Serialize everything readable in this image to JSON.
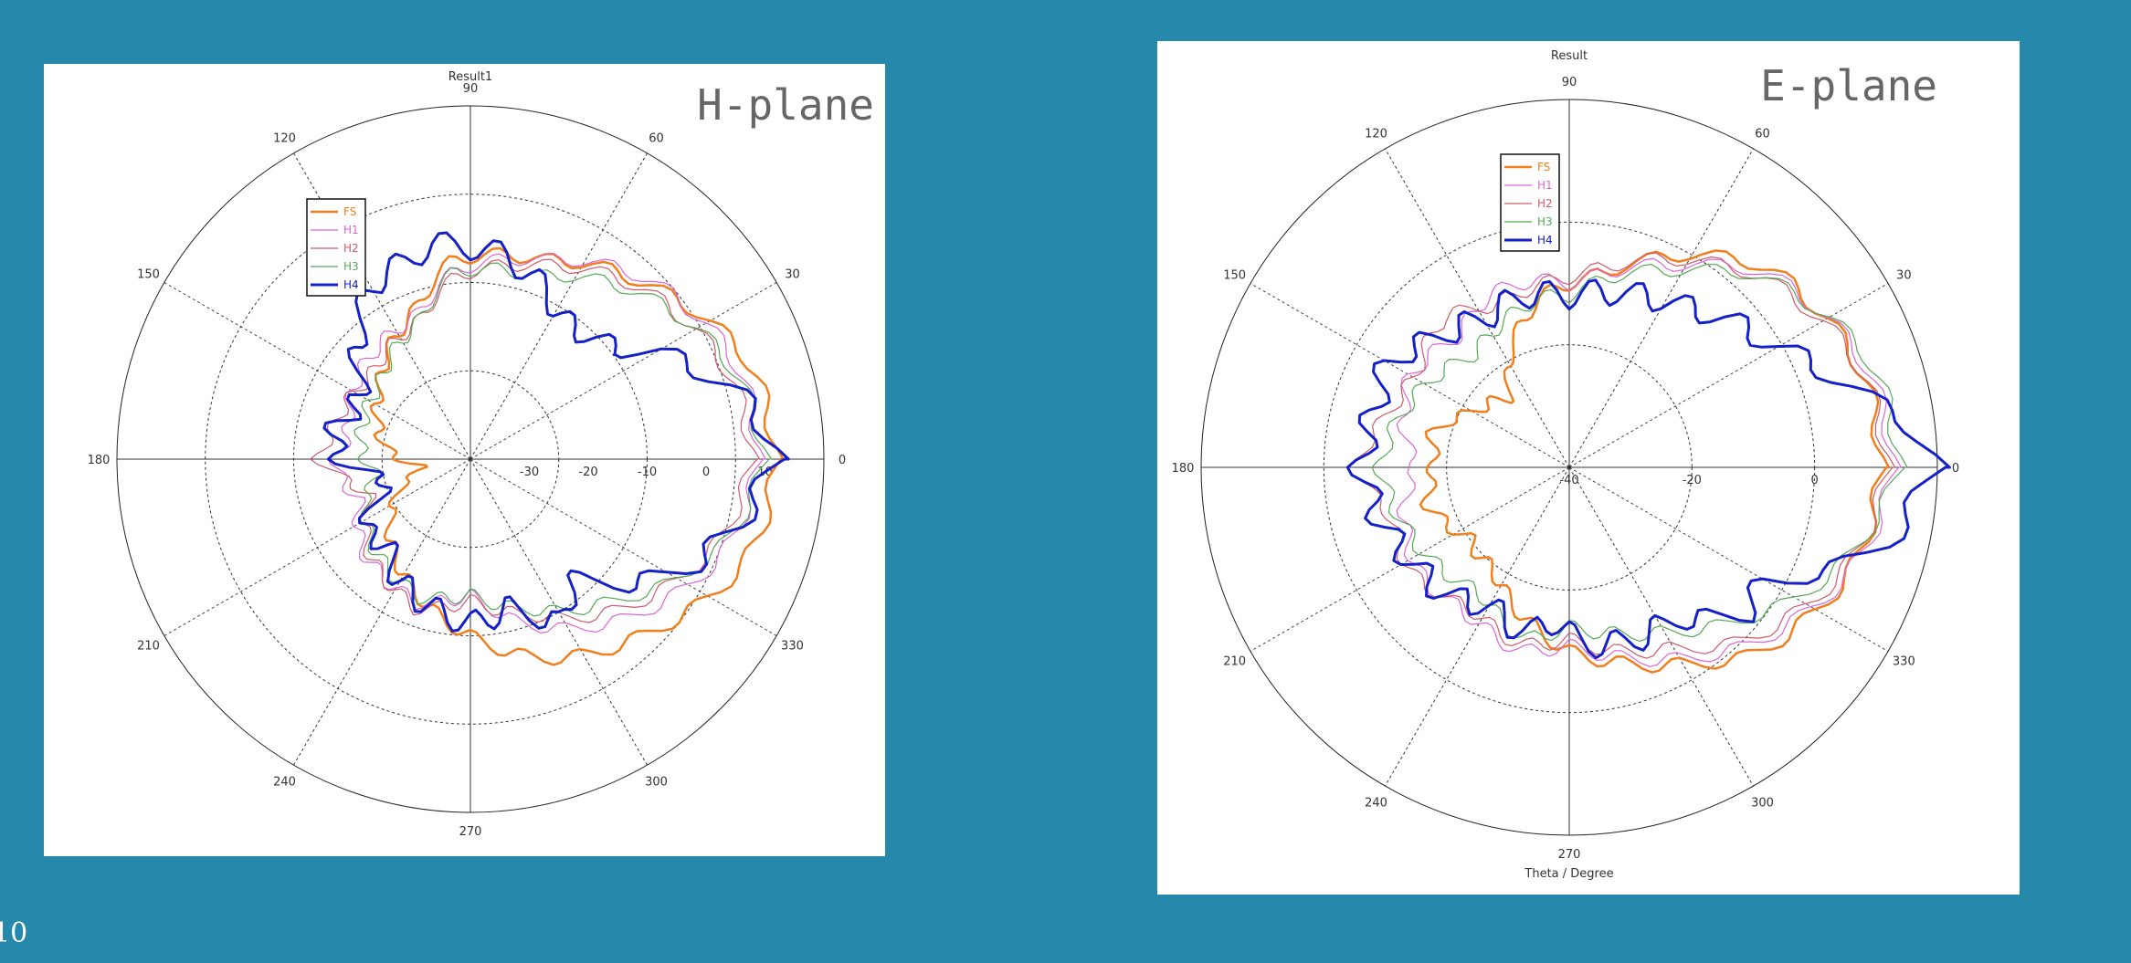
{
  "page_number": "10",
  "colors": {
    "background": "#2688aa",
    "FS": "#f07f1e",
    "H1": "#d966d6",
    "H2": "#cf5a6a",
    "H3": "#55a855",
    "H4": "#1420c8"
  },
  "chart_data": [
    {
      "type": "polar-line",
      "title": "Result1",
      "plane_label": "H-plane",
      "angle_labels": [
        "90",
        "60",
        "30",
        "0",
        "330",
        "300",
        "270",
        "240",
        "210",
        "180",
        "150",
        "120"
      ],
      "radial_range": [
        -40,
        20
      ],
      "radial_tick_labels": [
        "-30",
        "-20",
        "-10",
        "0",
        "10"
      ],
      "legend": [
        "FS",
        "H1",
        "H2",
        "H3",
        "H4"
      ],
      "legend_placement": "upper-left",
      "series": [
        {
          "name": "FS",
          "color": "#f07f1e",
          "width": 2.5,
          "theta": [
            0,
            20,
            45,
            70,
            95,
            110,
            140,
            170,
            180,
            190,
            200,
            220,
            250,
            270,
            290,
            315,
            340,
            360
          ],
          "r": [
            12,
            10,
            2,
            -4,
            -6,
            -13,
            -20,
            -25,
            -28,
            -32,
            -28,
            -22,
            -15,
            -10,
            -4,
            2,
            10,
            12
          ]
        },
        {
          "name": "H1",
          "color": "#d966d6",
          "width": 1.2,
          "theta": [
            0,
            20,
            45,
            70,
            95,
            110,
            140,
            170,
            180,
            190,
            200,
            220,
            250,
            270,
            290,
            315,
            340,
            360
          ],
          "r": [
            9,
            8,
            3,
            -4,
            -8,
            -14,
            -16,
            -19,
            -17,
            -18,
            -20,
            -16,
            -14,
            -17,
            -10,
            -2,
            6,
            9
          ]
        },
        {
          "name": "H2",
          "color": "#cf5a6a",
          "width": 1.2,
          "theta": [
            0,
            20,
            45,
            70,
            95,
            110,
            140,
            170,
            180,
            190,
            200,
            220,
            250,
            270,
            290,
            315,
            340,
            360
          ],
          "r": [
            8,
            6,
            1,
            -5,
            -9,
            -15,
            -18,
            -16,
            -14,
            -19,
            -22,
            -17,
            -13,
            -16,
            -12,
            -4,
            4,
            8
          ]
        },
        {
          "name": "H3",
          "color": "#55a855",
          "width": 1.2,
          "theta": [
            0,
            20,
            45,
            70,
            95,
            110,
            140,
            170,
            180,
            190,
            200,
            220,
            250,
            270,
            290,
            315,
            340,
            360
          ],
          "r": [
            10,
            7,
            0,
            -7,
            -8,
            -15,
            -20,
            -21,
            -22,
            -24,
            -21,
            -18,
            -15,
            -17,
            -13,
            -6,
            5,
            10
          ]
        },
        {
          "name": "H4",
          "color": "#1420c8",
          "width": 3,
          "theta": [
            0,
            5,
            15,
            25,
            30,
            35,
            40,
            55,
            65,
            80,
            90,
            100,
            110,
            120,
            135,
            150,
            160,
            170,
            175,
            180,
            185,
            190,
            195,
            205,
            215,
            225,
            240,
            255,
            270,
            285,
            300,
            310,
            320,
            335,
            350,
            360
          ],
          "r": [
            12,
            11,
            6,
            -1,
            -3,
            -8,
            -10,
            -12,
            -9,
            -5,
            -4,
            -3,
            -5,
            -6,
            -13,
            -19,
            -18,
            -16,
            -17,
            -18,
            -20,
            -24,
            -26,
            -22,
            -18,
            -20,
            -16,
            -14,
            -12,
            -14,
            -8,
            -14,
            -7,
            2,
            8,
            12
          ]
        }
      ]
    },
    {
      "type": "polar-line",
      "title": "Result",
      "plane_label": "E-plane",
      "xlabel": "Theta / Degree",
      "angle_labels": [
        "90",
        "60",
        "30",
        "0",
        "330",
        "300",
        "270",
        "240",
        "210",
        "180",
        "150",
        "120"
      ],
      "radial_range": [
        -40,
        20
      ],
      "radial_tick_labels": [
        "-40",
        "-20",
        "0"
      ],
      "legend": [
        "FS",
        "H1",
        "H2",
        "H3",
        "H4"
      ],
      "legend_placement": "upper-left",
      "series": [
        {
          "name": "FS",
          "color": "#f07f1e",
          "width": 2.5,
          "theta": [
            0,
            20,
            45,
            60,
            80,
            90,
            100,
            115,
            130,
            150,
            165,
            180,
            195,
            215,
            235,
            255,
            270,
            285,
            300,
            315,
            340,
            360
          ],
          "r": [
            11,
            10,
            6,
            0,
            -8,
            -10,
            -12,
            -18,
            -25,
            -22,
            -17,
            -18,
            -16,
            -20,
            -19,
            -14,
            -10,
            -7,
            -3,
            3,
            9,
            11
          ]
        },
        {
          "name": "H1",
          "color": "#d966d6",
          "width": 1.2,
          "theta": [
            0,
            20,
            45,
            60,
            80,
            90,
            100,
            115,
            130,
            150,
            165,
            180,
            195,
            215,
            235,
            255,
            270,
            285,
            300,
            315,
            340,
            360
          ],
          "r": [
            13,
            11,
            5,
            -2,
            -8,
            -10,
            -9,
            -9,
            -12,
            -10,
            -12,
            -15,
            -12,
            -10,
            -11,
            -9,
            -11,
            -8,
            -4,
            1,
            9,
            13
          ]
        },
        {
          "name": "H2",
          "color": "#cf5a6a",
          "width": 1.2,
          "theta": [
            0,
            20,
            45,
            60,
            80,
            90,
            100,
            115,
            130,
            150,
            165,
            180,
            195,
            215,
            235,
            255,
            270,
            285,
            300,
            315,
            340,
            360
          ],
          "r": [
            12,
            10,
            4,
            -1,
            -7,
            -9,
            -10,
            -11,
            -8,
            -11,
            -9,
            -5,
            -10,
            -9,
            -12,
            -10,
            -12,
            -9,
            -6,
            0,
            8,
            12
          ]
        },
        {
          "name": "H3",
          "color": "#55a855",
          "width": 1.2,
          "theta": [
            0,
            20,
            45,
            60,
            80,
            90,
            100,
            115,
            130,
            150,
            165,
            180,
            195,
            215,
            235,
            255,
            270,
            285,
            300,
            315,
            340,
            360
          ],
          "r": [
            14,
            12,
            4,
            -3,
            -9,
            -12,
            -12,
            -14,
            -16,
            -13,
            -11,
            -9,
            -11,
            -13,
            -15,
            -11,
            -14,
            -12,
            -9,
            -4,
            7,
            14
          ]
        },
        {
          "name": "H4",
          "color": "#1420c8",
          "width": 3,
          "theta": [
            0,
            5,
            15,
            30,
            40,
            55,
            70,
            90,
            105,
            120,
            135,
            150,
            165,
            180,
            195,
            210,
            225,
            240,
            255,
            265,
            275,
            290,
            305,
            320,
            330,
            345,
            360
          ],
          "r": [
            20,
            18,
            8,
            -1,
            -4,
            -8,
            -10,
            -12,
            -11,
            -12,
            -10,
            -6,
            -7,
            -6,
            -8,
            -10,
            -11,
            -14,
            -12,
            -15,
            -11,
            -10,
            -10,
            -3,
            -3,
            12,
            20
          ]
        }
      ]
    }
  ]
}
